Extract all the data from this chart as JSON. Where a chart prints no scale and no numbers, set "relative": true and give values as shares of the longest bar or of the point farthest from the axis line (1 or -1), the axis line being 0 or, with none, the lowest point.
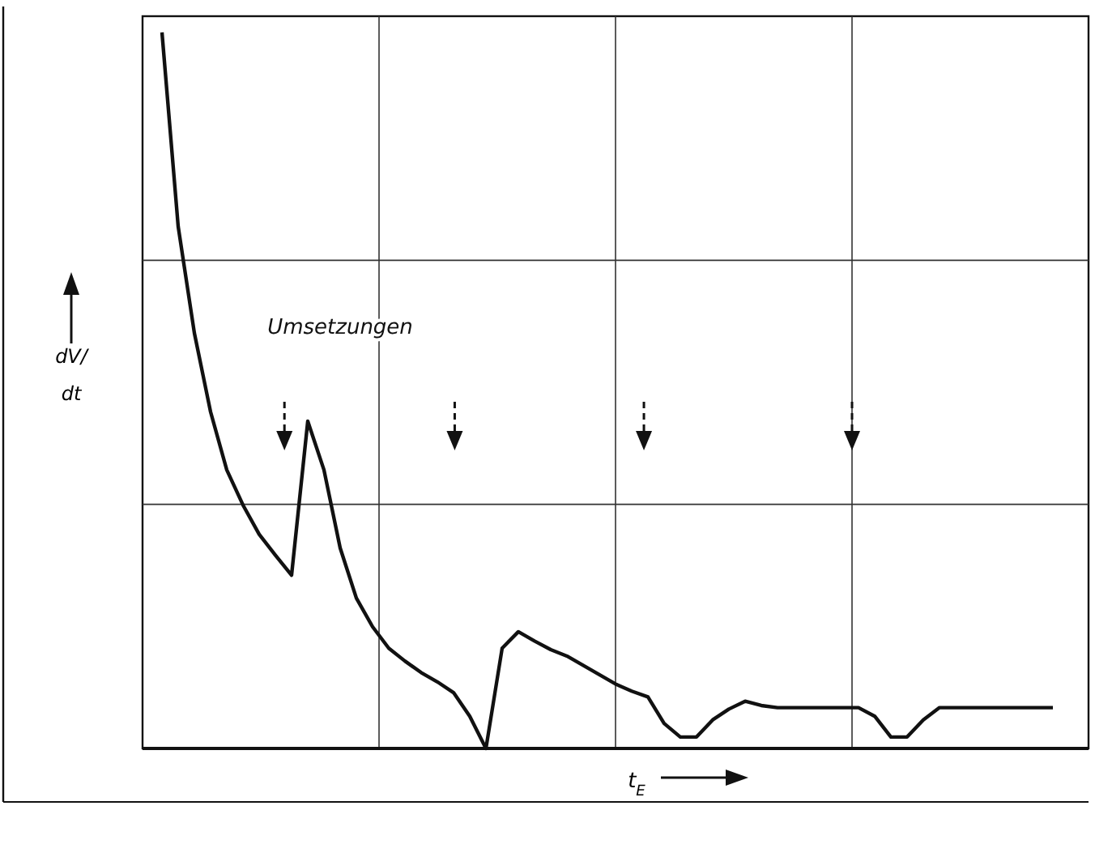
{
  "chart_data": {
    "type": "line",
    "relative": true,
    "xlabel": "t$_{E}$",
    "ylabel": "dV/dt",
    "annotations": [
      "Umsetzungen"
    ],
    "grid": true,
    "marker": "none",
    "line_style": "solid",
    "categories": [
      null,
      null,
      null,
      null,
      null,
      null,
      null,
      null,
      null,
      null,
      null,
      null,
      null,
      null,
      null,
      null,
      null,
      null,
      null,
      null,
      null,
      null,
      null,
      null,
      null,
      null,
      null,
      null,
      null,
      null,
      null,
      null,
      null,
      null,
      null,
      null,
      null,
      null,
      null,
      null,
      null,
      null,
      null,
      null,
      null,
      null,
      null,
      null,
      null,
      null,
      null,
      null,
      null,
      null,
      null,
      null
    ],
    "series": [
      {
        "color": "#111111",
        "values": [
          1,
          0.729,
          0.58,
          0.47,
          0.389,
          0.34,
          0.299,
          0.27,
          0.242,
          0.457,
          0.389,
          0.28,
          0.21,
          0.17,
          0.14,
          0.122,
          0.106,
          0.093,
          0.078,
          0.045,
          0,
          0.14,
          0.163,
          0.15,
          0.138,
          0.129,
          0.116,
          0.103,
          0.09,
          0.08,
          0.072,
          0.035,
          0.016,
          0.016,
          0.04,
          0.055,
          0.066,
          0.06,
          0.057,
          0.057,
          0.057,
          0.057,
          0.057,
          0.057,
          0.045,
          0.016,
          0.016,
          0.04,
          0.057,
          0.057,
          0.057,
          0.057,
          0.057,
          0.057,
          0.057,
          0.057
        ]
      }
    ]
  }
}
